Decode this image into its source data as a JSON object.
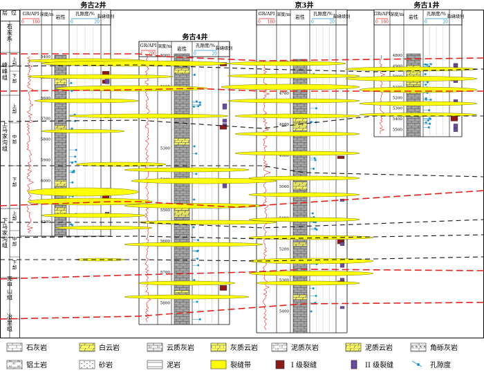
{
  "strat_column": {
    "header_top": "层",
    "header_bottom": "位",
    "units": [
      {
        "name": "石炭系"
      },
      {
        "name": "峰峰组",
        "subs": [
          "上部",
          "下部"
        ]
      },
      {
        "name": "上马家沟组",
        "subs": [
          "上部",
          "中部",
          "下部"
        ]
      },
      {
        "name": "下马家沟组",
        "subs": [
          "上部",
          "中部",
          "下部"
        ]
      },
      {
        "name": "亮甲山组"
      },
      {
        "name": "冶里组"
      }
    ]
  },
  "column_headers": {
    "gr": "GR/API",
    "depth": "深度/m",
    "lith": "岩性",
    "porosity": "孔隙度/%",
    "por_min": "0",
    "por_max": "20",
    "fracture": "裂缝级别"
  },
  "wells": [
    {
      "name": "务古2井",
      "gr_min": "0",
      "gr_max": "180",
      "depths": [
        "5400",
        "5500",
        "5600",
        "5700",
        "5800",
        "5900",
        "6000",
        "6100",
        "6200"
      ]
    },
    {
      "name": "务古4井",
      "gr_min": "1",
      "gr_max": "200",
      "depths": [
        "5000",
        "5100",
        "5200",
        "5300",
        "5400",
        "5500",
        "5600",
        "5700",
        "5800"
      ]
    },
    {
      "name": "京3井",
      "gr_min": "0",
      "gr_max": "180",
      "depths": [
        "4600",
        "4700",
        "4800",
        "4900",
        "5000",
        "5100",
        "5200",
        "5300",
        "5400"
      ]
    },
    {
      "name": "务古1井",
      "gr_min": "0",
      "gr_max": "180",
      "depths": [
        "4800",
        "4900",
        "5000",
        "5100",
        "5200",
        "5300",
        "5400",
        "5500"
      ]
    }
  ],
  "legend": [
    {
      "label": "石灰岩",
      "icon": "limestone-icon"
    },
    {
      "label": "白云岩",
      "icon": "dolomite-icon"
    },
    {
      "label": "云质灰岩",
      "icon": "dolomitic-limestone-icon"
    },
    {
      "label": "灰质云岩",
      "icon": "calcareous-dolomite-icon"
    },
    {
      "label": "泥质灰岩",
      "icon": "argillaceous-limestone-icon"
    },
    {
      "label": "泥质云岩",
      "icon": "argillaceous-dolomite-icon"
    },
    {
      "label": "角砾灰岩",
      "icon": "breccia-limestone-icon"
    },
    {
      "label": "铝土岩",
      "icon": "bauxite-icon"
    },
    {
      "label": "砂岩",
      "icon": "sandstone-icon"
    },
    {
      "label": "泥岩",
      "icon": "mudstone-icon"
    },
    {
      "label": "裂缝带",
      "icon": "fracture-zone-icon"
    },
    {
      "label": "I 级裂缝",
      "icon": "grade-1-fracture-icon"
    },
    {
      "label": "II 级裂缝",
      "icon": "grade-2-fracture-icon"
    },
    {
      "label": "孔隙度",
      "icon": "porosity-marker-icon"
    }
  ],
  "colors": {
    "fracture_zone": "#ffff00",
    "boundary_red": "#e0201b",
    "gr_curve": "#e0201b",
    "porosity": "#1e90c8",
    "lith_grey": "#9a9a9a",
    "grade1": "#8b1a1a",
    "grade2": "#6a4a9a"
  }
}
